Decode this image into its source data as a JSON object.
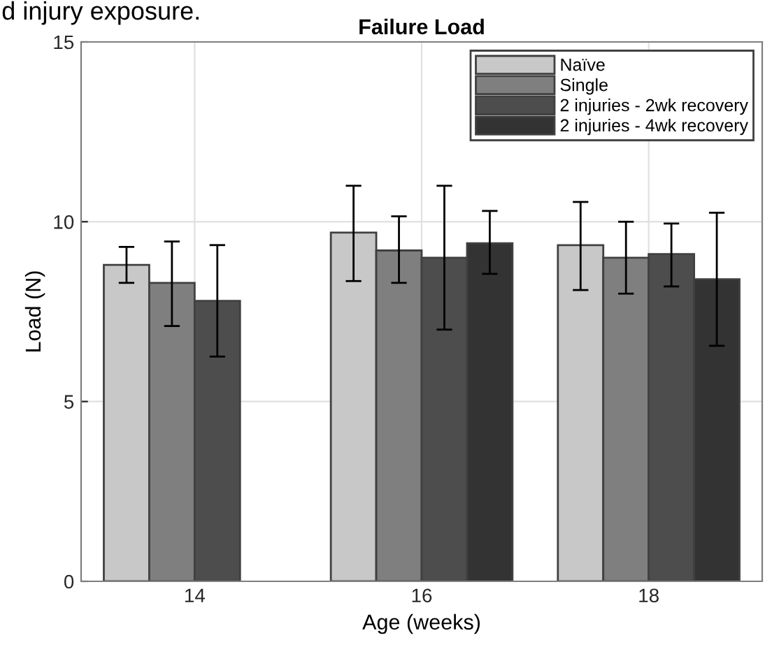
{
  "chart_data": {
    "type": "bar",
    "title": "Failure Load",
    "xlabel": "Age (weeks)",
    "ylabel": "Load (N)",
    "annotations": [
      "d injury exposure."
    ],
    "categories": [
      "14",
      "16",
      "18"
    ],
    "series": [
      {
        "name": "Naïve",
        "color": "#c8c8c8",
        "values": [
          8.8,
          9.7,
          9.35
        ],
        "errors": [
          [
            8.3,
            9.3
          ],
          [
            8.35,
            11.0
          ],
          [
            8.1,
            10.55
          ]
        ]
      },
      {
        "name": "Single",
        "color": "#7f7f7f",
        "values": [
          8.3,
          9.2,
          9.0
        ],
        "errors": [
          [
            7.1,
            9.45
          ],
          [
            8.3,
            10.15
          ],
          [
            8.0,
            10.0
          ]
        ]
      },
      {
        "name": "2 injuries - 2wk recovery",
        "color": "#4d4d4d",
        "values": [
          7.8,
          9.0,
          9.1
        ],
        "errors": [
          [
            6.25,
            9.35
          ],
          [
            7.0,
            11.0
          ],
          [
            8.2,
            9.95
          ]
        ]
      },
      {
        "name": "2 injuries - 4wk recovery",
        "color": "#333333",
        "values": [
          null,
          9.4,
          8.4
        ],
        "errors": [
          null,
          [
            8.55,
            10.3
          ],
          [
            6.55,
            10.25
          ]
        ]
      }
    ],
    "ylim": [
      0,
      15
    ],
    "yticks": [
      0,
      5,
      10,
      15
    ],
    "grid": true,
    "legend": "top right"
  }
}
